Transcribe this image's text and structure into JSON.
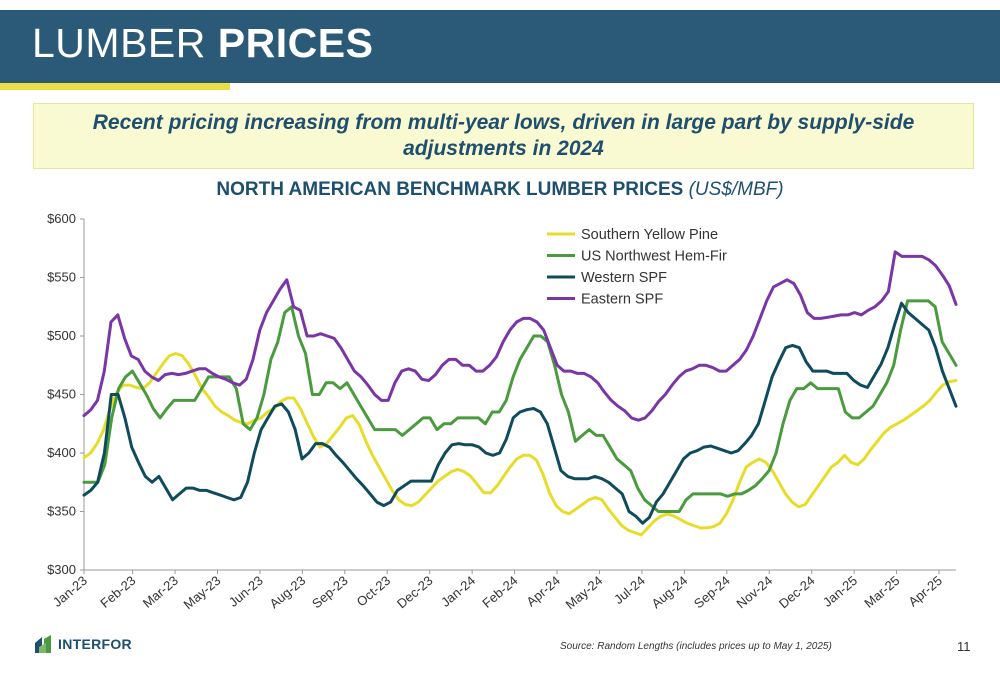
{
  "header": {
    "title_light": "LUMBER ",
    "title_bold": "PRICES"
  },
  "callout": {
    "text": "Recent pricing increasing from multi-year lows, driven in large part by supply-side adjustments in 2024"
  },
  "footer": {
    "source": "Source: Random Lengths (includes prices up to May 1, 2025)",
    "page_number": "11",
    "logo_text": "INTERFOR"
  },
  "colors": {
    "header_bg": "#2a5a78",
    "accent": "#e9e045",
    "callout_bg": "#fafad2",
    "callout_text": "#1e4f6e",
    "southern_yellow_pine": "#e8dc2a",
    "us_northwest_hem_fir": "#4a9a3e",
    "western_spf": "#0f4b5c",
    "eastern_spf": "#7a35a6"
  },
  "chart_data": {
    "type": "line",
    "title": "NORTH AMERICAN BENCHMARK LUMBER PRICES",
    "title_unit": "(US$/MBF)",
    "xlabel": "",
    "ylabel": "",
    "ylim": [
      300,
      600
    ],
    "yticks": [
      300,
      350,
      400,
      450,
      500,
      550,
      600
    ],
    "ytick_labels": [
      "$300",
      "$350",
      "$400",
      "$450",
      "$500",
      "$550",
      "$600"
    ],
    "xtick_labels": [
      "Jan-23",
      "Feb-23",
      "Mar-23",
      "May-23",
      "Jun-23",
      "Aug-23",
      "Sep-23",
      "Oct-23",
      "Dec-23",
      "Jan-24",
      "Feb-24",
      "Apr-24",
      "May-24",
      "Jul-24",
      "Aug-24",
      "Sep-24",
      "Nov-24",
      "Dec-24",
      "Jan-25",
      "Mar-25",
      "Apr-25"
    ],
    "xtick_weeks": [
      0,
      6.3,
      11.8,
      17.3,
      22.8,
      28.3,
      33.8,
      39.3,
      44.8,
      50.3,
      55.8,
      61.3,
      66.8,
      72.3,
      77.8,
      83.3,
      88.8,
      94.3,
      99.8,
      105.3,
      110.8
    ],
    "grid": false,
    "legend_position": "top-right",
    "series": [
      {
        "name": "Southern Yellow Pine",
        "values": [
          396,
          400,
          408,
          420,
          438,
          452,
          458,
          458,
          456,
          455,
          460,
          468,
          476,
          483,
          485,
          483,
          476,
          466,
          455,
          448,
          440,
          435,
          432,
          428,
          426,
          425,
          428,
          430,
          435,
          438,
          444,
          447,
          447,
          438,
          426,
          414,
          405,
          408,
          415,
          422,
          430,
          432,
          424,
          410,
          398,
          388,
          378,
          368,
          360,
          356,
          355,
          358,
          364,
          370,
          376,
          380,
          384,
          386,
          384,
          380,
          373,
          366,
          366,
          372,
          380,
          388,
          395,
          398,
          398,
          394,
          382,
          366,
          355,
          350,
          348,
          352,
          356,
          360,
          362,
          360,
          352,
          345,
          338,
          334,
          332,
          330,
          336,
          342,
          346,
          348,
          346,
          343,
          340,
          338,
          336,
          336,
          337,
          340,
          348,
          360,
          375,
          388,
          392,
          395,
          392,
          385,
          375,
          365,
          358,
          354,
          356,
          364,
          372,
          380,
          388,
          392,
          398,
          392,
          390,
          395,
          403,
          410,
          417,
          422,
          425,
          428,
          432,
          436,
          440,
          445,
          452,
          458,
          461,
          462
        ],
        "color": "#e8dc2a"
      },
      {
        "name": "US Northwest Hem-Fir",
        "values": [
          375,
          375,
          375,
          390,
          430,
          455,
          465,
          470,
          460,
          450,
          438,
          430,
          438,
          445,
          445,
          445,
          445,
          455,
          465,
          465,
          465,
          465,
          455,
          425,
          420,
          430,
          450,
          480,
          495,
          520,
          525,
          500,
          485,
          450,
          450,
          460,
          460,
          455,
          460,
          450,
          440,
          430,
          420,
          420,
          420,
          420,
          415,
          420,
          425,
          430,
          430,
          420,
          425,
          425,
          430,
          430,
          430,
          430,
          425,
          435,
          435,
          445,
          465,
          480,
          490,
          500,
          500,
          495,
          475,
          450,
          435,
          410,
          415,
          420,
          415,
          415,
          405,
          395,
          390,
          385,
          370,
          360,
          355,
          350,
          350,
          350,
          350,
          360,
          365,
          365,
          365,
          365,
          365,
          363,
          365,
          365,
          368,
          372,
          378,
          385,
          400,
          425,
          445,
          455,
          455,
          460,
          455,
          455,
          455,
          455,
          435,
          430,
          430,
          435,
          440,
          450,
          460,
          475,
          505,
          530,
          530,
          530,
          530,
          525,
          495,
          485,
          475
        ],
        "color": "#4a9a3e"
      },
      {
        "name": "Western SPF",
        "values": [
          364,
          368,
          375,
          400,
          450,
          450,
          430,
          405,
          392,
          380,
          375,
          380,
          370,
          360,
          365,
          370,
          370,
          368,
          368,
          366,
          364,
          362,
          360,
          362,
          375,
          400,
          420,
          430,
          440,
          442,
          435,
          420,
          395,
          400,
          408,
          408,
          405,
          398,
          392,
          385,
          378,
          372,
          365,
          358,
          355,
          358,
          368,
          372,
          376,
          376,
          376,
          376,
          390,
          400,
          407,
          408,
          407,
          407,
          405,
          400,
          398,
          400,
          412,
          430,
          435,
          437,
          438,
          435,
          425,
          405,
          385,
          380,
          378,
          378,
          378,
          380,
          378,
          375,
          370,
          365,
          350,
          346,
          340,
          345,
          358,
          365,
          375,
          385,
          395,
          400,
          402,
          405,
          406,
          404,
          402,
          400,
          402,
          408,
          415,
          425,
          445,
          465,
          478,
          490,
          492,
          490,
          478,
          470,
          470,
          470,
          468,
          468,
          468,
          462,
          458,
          456,
          466,
          476,
          490,
          510,
          528,
          520,
          515,
          510,
          505,
          490,
          470,
          455,
          440
        ],
        "color": "#0f4b5c"
      },
      {
        "name": "Eastern SPF",
        "values": [
          432,
          437,
          445,
          470,
          512,
          518,
          498,
          483,
          480,
          470,
          465,
          462,
          467,
          468,
          467,
          468,
          470,
          472,
          472,
          468,
          465,
          463,
          460,
          458,
          463,
          480,
          505,
          520,
          530,
          540,
          548,
          525,
          522,
          500,
          500,
          502,
          500,
          498,
          490,
          480,
          470,
          465,
          458,
          450,
          445,
          445,
          460,
          470,
          472,
          470,
          463,
          462,
          467,
          475,
          480,
          480,
          475,
          475,
          470,
          470,
          475,
          482,
          495,
          505,
          512,
          515,
          515,
          512,
          505,
          490,
          475,
          470,
          470,
          468,
          468,
          465,
          460,
          452,
          445,
          440,
          436,
          430,
          428,
          430,
          436,
          444,
          450,
          458,
          465,
          470,
          472,
          475,
          475,
          473,
          470,
          470,
          475,
          480,
          488,
          500,
          515,
          530,
          542,
          545,
          548,
          545,
          535,
          520,
          515,
          515,
          516,
          517,
          518,
          518,
          520,
          518,
          522,
          525,
          530,
          538,
          572,
          568,
          568,
          568,
          568,
          565,
          560,
          552,
          543,
          527
        ],
        "color": "#7a35a6"
      }
    ]
  }
}
